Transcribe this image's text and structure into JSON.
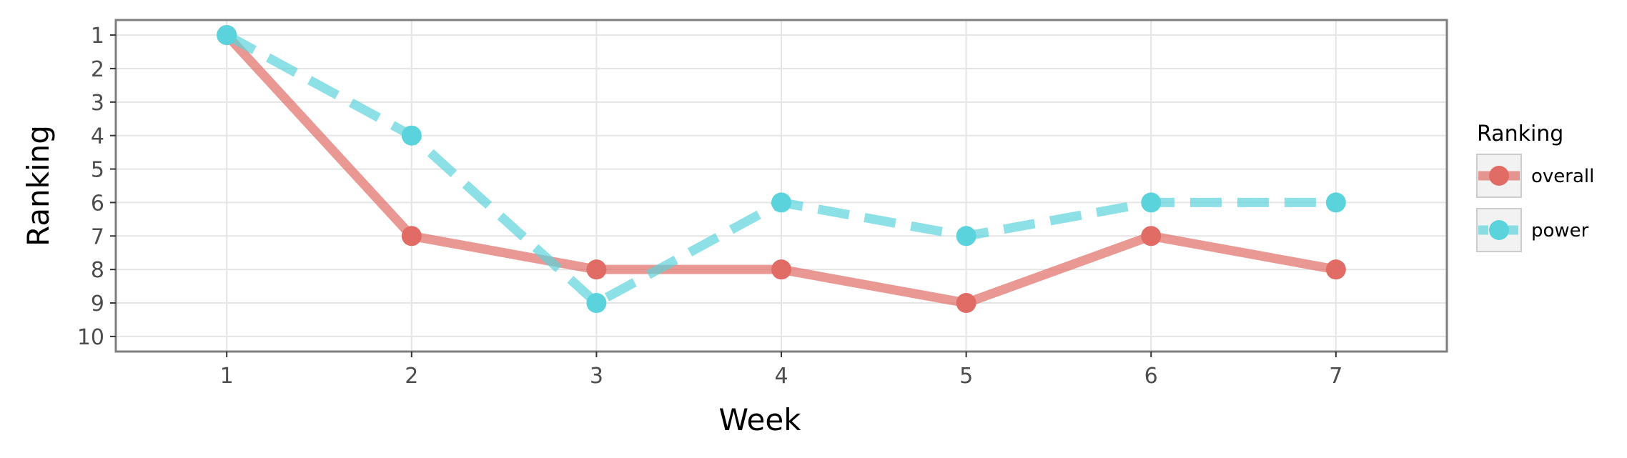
{
  "chart_data": {
    "type": "line",
    "x": [
      1,
      2,
      3,
      4,
      5,
      6,
      7
    ],
    "xlabel": "Week",
    "ylabel": "Ranking",
    "x_ticks": [
      "1",
      "2",
      "3",
      "4",
      "5",
      "6",
      "7"
    ],
    "y_ticks": [
      "1",
      "2",
      "3",
      "4",
      "5",
      "6",
      "7",
      "8",
      "9",
      "10"
    ],
    "xlim": [
      0.4,
      7.6
    ],
    "ylim": [
      10.45,
      0.55
    ],
    "y_reversed": true,
    "grid": true,
    "legend": {
      "title": "Ranking",
      "position": "right"
    },
    "series": [
      {
        "name": "overall",
        "values": [
          1,
          7,
          8,
          8,
          9,
          7,
          8
        ],
        "color": "#e06c65",
        "line_style": "solid"
      },
      {
        "name": "power",
        "values": [
          1,
          4,
          9,
          6,
          7,
          6,
          6
        ],
        "color": "#5bd3dc",
        "line_style": "dashed"
      }
    ]
  }
}
